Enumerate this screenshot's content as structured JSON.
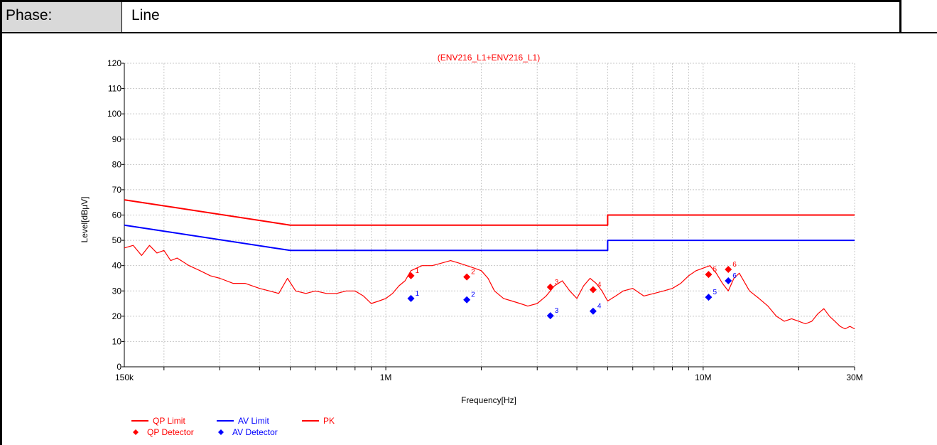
{
  "header": {
    "phase_label": "Phase:",
    "phase_value": "Line"
  },
  "chart_data": {
    "type": "line",
    "title": "(ENV216_L1+ENV216_L1)",
    "xlabel": "Frequency[Hz]",
    "ylabel": "Level[dBµV]",
    "x_scale": "log",
    "xlim": [
      150000,
      30000000
    ],
    "ylim": [
      0,
      120
    ],
    "grid": true,
    "x_tick_labels": [
      {
        "value": 150000,
        "label": "150k"
      },
      {
        "value": 1000000,
        "label": "1M"
      },
      {
        "value": 10000000,
        "label": "10M"
      },
      {
        "value": 30000000,
        "label": "30M"
      }
    ],
    "y_ticks": [
      0,
      10,
      20,
      30,
      40,
      50,
      60,
      70,
      80,
      90,
      100,
      110,
      120
    ],
    "colors": {
      "qp": "#ff0000",
      "av": "#0000ff",
      "pk": "#ff0000"
    },
    "series": [
      {
        "name": "QP Limit",
        "color": "#ff0000",
        "x": [
          150000,
          500000,
          500000,
          5000000,
          5000000,
          30000000
        ],
        "y": [
          66,
          56,
          56,
          56,
          60,
          60
        ]
      },
      {
        "name": "AV Limit",
        "color": "#0000ff",
        "x": [
          150000,
          500000,
          500000,
          5000000,
          5000000,
          30000000
        ],
        "y": [
          56,
          46,
          46,
          46,
          50,
          50
        ]
      },
      {
        "name": "PK",
        "color": "#ff0000",
        "x": [
          150000,
          160000,
          170000,
          180000,
          190000,
          200000,
          210000,
          220000,
          240000,
          260000,
          280000,
          300000,
          330000,
          360000,
          400000,
          430000,
          460000,
          490000,
          520000,
          560000,
          600000,
          650000,
          700000,
          750000,
          800000,
          850000,
          900000,
          950000,
          1000000,
          1050000,
          1100000,
          1150000,
          1200000,
          1300000,
          1400000,
          1500000,
          1600000,
          1700000,
          1800000,
          1900000,
          2000000,
          2100000,
          2200000,
          2350000,
          2500000,
          2650000,
          2800000,
          3000000,
          3200000,
          3400000,
          3600000,
          3800000,
          4000000,
          4200000,
          4400000,
          4600000,
          4800000,
          5000000,
          5300000,
          5600000,
          6000000,
          6500000,
          7000000,
          7500000,
          8000000,
          8500000,
          9000000,
          9500000,
          10000000,
          10500000,
          11000000,
          11500000,
          12000000,
          12500000,
          13000000,
          14000000,
          15000000,
          16000000,
          17000000,
          18000000,
          19000000,
          20000000,
          21000000,
          22000000,
          23000000,
          24000000,
          25000000,
          26000000,
          27000000,
          28000000,
          29000000,
          30000000
        ],
        "y": [
          47,
          48,
          44,
          48,
          45,
          46,
          42,
          43,
          40,
          38,
          36,
          35,
          33,
          33,
          31,
          30,
          29,
          35,
          30,
          29,
          30,
          29,
          29,
          30,
          30,
          28,
          25,
          26,
          27,
          29,
          32,
          34,
          38,
          40,
          40,
          41,
          42,
          41,
          40,
          39,
          38,
          35,
          30,
          27,
          26,
          25,
          24,
          25,
          28,
          32,
          34,
          30,
          27,
          32,
          35,
          33,
          30,
          26,
          28,
          30,
          31,
          28,
          29,
          30,
          31,
          33,
          36,
          38,
          39,
          40,
          37,
          33,
          30,
          35,
          37,
          30,
          27,
          24,
          20,
          18,
          19,
          18,
          17,
          18,
          21,
          23,
          20,
          18,
          16,
          15,
          16,
          15
        ]
      }
    ],
    "markers": [
      {
        "name": "QP Detector",
        "color": "#ff0000",
        "points": [
          {
            "id": "1",
            "x": 1200000,
            "y": 36
          },
          {
            "id": "2",
            "x": 1800000,
            "y": 35.5
          },
          {
            "id": "3",
            "x": 3300000,
            "y": 31.5
          },
          {
            "id": "4",
            "x": 4500000,
            "y": 30.5
          },
          {
            "id": "5",
            "x": 10400000,
            "y": 36.5
          },
          {
            "id": "6",
            "x": 12000000,
            "y": 38.5
          }
        ]
      },
      {
        "name": "AV Detector",
        "color": "#0000ff",
        "points": [
          {
            "id": "1",
            "x": 1200000,
            "y": 27
          },
          {
            "id": "2",
            "x": 1800000,
            "y": 26.5
          },
          {
            "id": "3",
            "x": 3300000,
            "y": 20.2
          },
          {
            "id": "4",
            "x": 4500000,
            "y": 22
          },
          {
            "id": "5",
            "x": 10400000,
            "y": 27.5
          },
          {
            "id": "6",
            "x": 12000000,
            "y": 34
          }
        ]
      }
    ],
    "legend": [
      {
        "label": "QP Limit",
        "kind": "line",
        "color": "#ff0000"
      },
      {
        "label": "AV Limit",
        "kind": "line",
        "color": "#0000ff"
      },
      {
        "label": "PK",
        "kind": "line",
        "color": "#ff0000"
      },
      {
        "label": "QP Detector",
        "kind": "diamond",
        "color": "#ff0000"
      },
      {
        "label": "AV Detector",
        "kind": "diamond",
        "color": "#0000ff"
      }
    ],
    "legend_position": "bottom-left"
  }
}
